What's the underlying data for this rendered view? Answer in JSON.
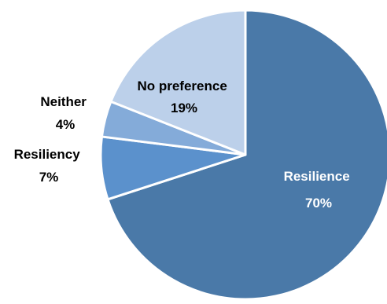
{
  "chart_data": {
    "type": "pie",
    "title": "",
    "series": [
      {
        "name": "",
        "slices": [
          {
            "label": "Resilience",
            "value": 70,
            "value_label": "70%",
            "color": "#4a79a8",
            "text_color": "#ffffff"
          },
          {
            "label": "Resiliency",
            "value": 7,
            "value_label": "7%",
            "color": "#5b91cc",
            "text_color": "#000000"
          },
          {
            "label": "Neither",
            "value": 4,
            "value_label": "4%",
            "color": "#84abd9",
            "text_color": "#000000"
          },
          {
            "label": "No preference",
            "value": 19,
            "value_label": "19%",
            "color": "#bcd0ea",
            "text_color": "#000000"
          }
        ]
      }
    ],
    "start_angle_deg": 0,
    "direction": "clockwise",
    "legend": "none",
    "labels": "category and percent on or beside slices"
  }
}
